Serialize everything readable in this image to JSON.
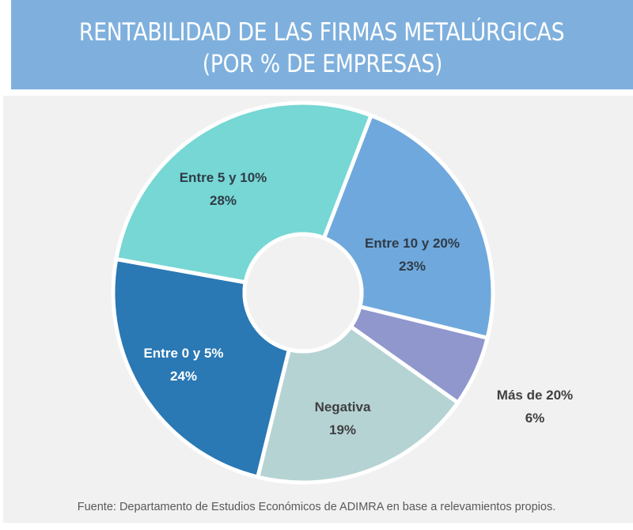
{
  "header": {
    "title_line1": "RENTABILIDAD DE LAS FIRMAS METALÚRGICAS",
    "title_line2": "(POR % DE EMPRESAS)"
  },
  "source": "Fuente: Departamento de Estudios Económicos de ADIMRA en base a relevamientos propios.",
  "colors": {
    "header_bg": "#7fb0dd",
    "panel_bg": "#f1f1f1",
    "label_dark": "#2f3b48",
    "label_light": "#ffffff"
  },
  "chart_data": {
    "type": "pie",
    "variant": "donut",
    "title": "RENTABILIDAD DE LAS FIRMAS METALÚRGICAS (POR % DE EMPRESAS)",
    "start_angle_deg": 21,
    "direction": "clockwise",
    "slices": [
      {
        "name": "Entre 10 y 20%",
        "value": 23,
        "value_label": "23%",
        "color": "#6fa8dc",
        "label_color": "#2f3b48",
        "label_position": "inside"
      },
      {
        "name": "Más de 20%",
        "value": 6,
        "value_label": "6%",
        "color": "#8f97cc",
        "label_color": "#404040",
        "label_position": "outside"
      },
      {
        "name": "Negativa",
        "value": 19,
        "value_label": "19%",
        "color": "#b6d3d4",
        "label_color": "#404040",
        "label_position": "inside"
      },
      {
        "name": "Entre 0 y 5%",
        "value": 24,
        "value_label": "24%",
        "color": "#2a78b4",
        "label_color": "#ffffff",
        "label_position": "inside"
      },
      {
        "name": "Entre 5 y 10%",
        "value": 28,
        "value_label": "28%",
        "color": "#76d7d4",
        "label_color": "#2f3b48",
        "label_position": "inside"
      }
    ]
  }
}
